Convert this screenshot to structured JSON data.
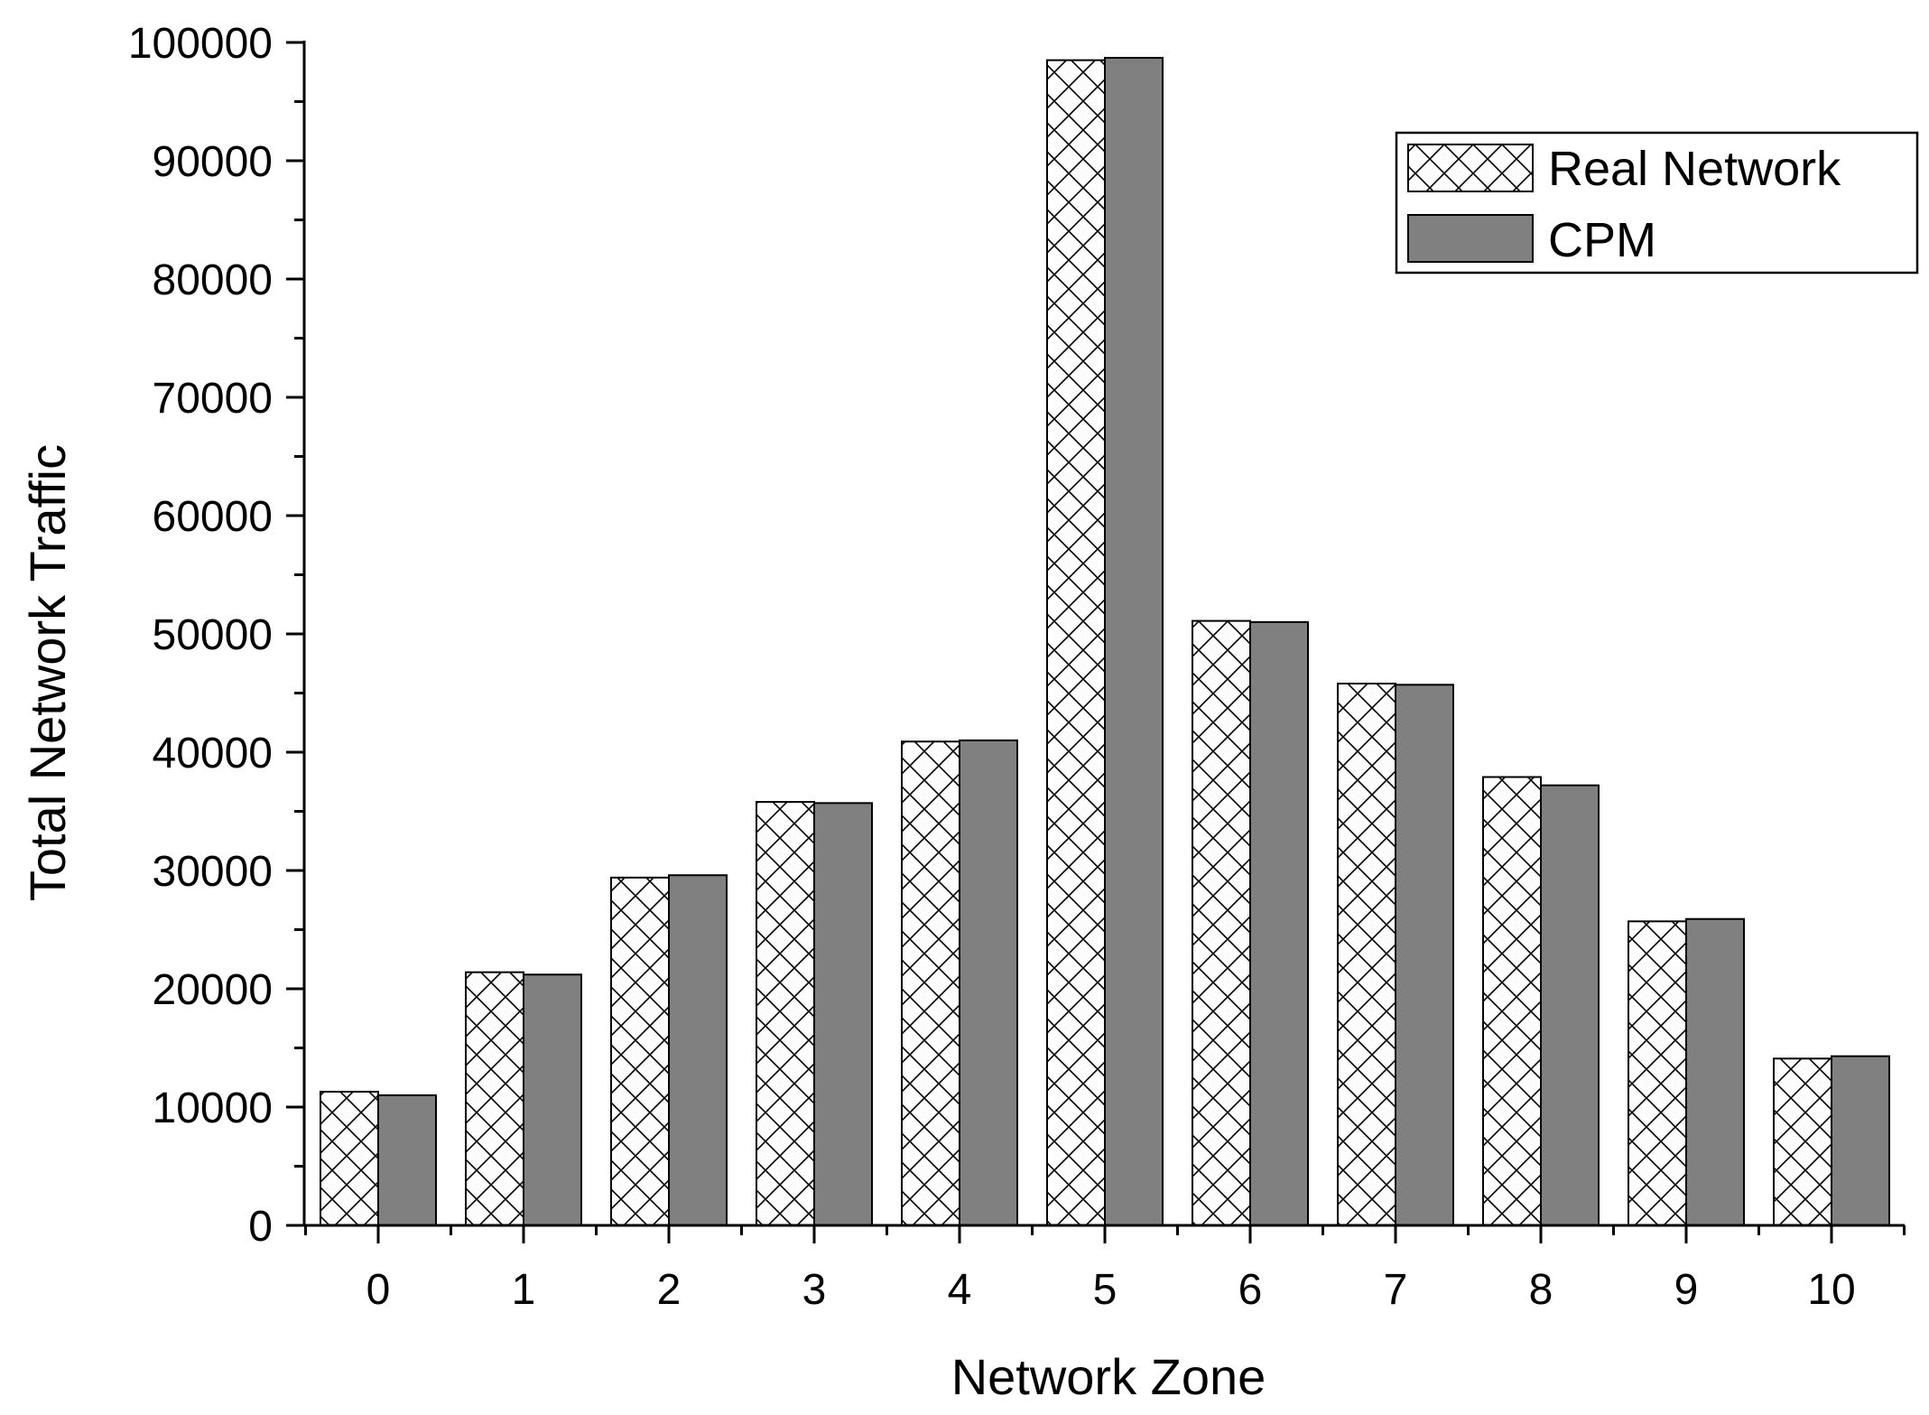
{
  "chart_data": {
    "type": "bar",
    "xlabel": "Network Zone",
    "ylabel": "Total Network Traffic",
    "ylim": [
      0,
      100000
    ],
    "yticks": [
      0,
      10000,
      20000,
      30000,
      40000,
      50000,
      60000,
      70000,
      80000,
      90000,
      100000
    ],
    "categories": [
      "0",
      "1",
      "2",
      "3",
      "4",
      "5",
      "6",
      "7",
      "8",
      "9",
      "10"
    ],
    "series": [
      {
        "name": "Real Network",
        "fill": "crosshatch",
        "color": "#ffffff",
        "values": [
          11300,
          21400,
          29400,
          35800,
          40900,
          98500,
          51100,
          45800,
          37900,
          25700,
          14100
        ]
      },
      {
        "name": "CPM",
        "fill": "solid",
        "color": "#808080",
        "values": [
          11000,
          21200,
          29600,
          35700,
          41000,
          98700,
          51000,
          45700,
          37200,
          25900,
          14300
        ]
      }
    ],
    "legend_position": "top-right",
    "grid": false
  }
}
